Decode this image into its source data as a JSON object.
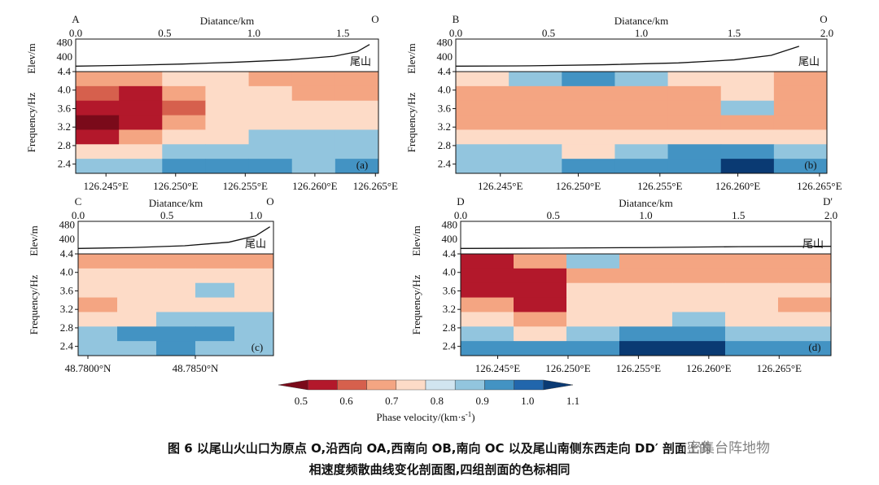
{
  "colors": {
    "palette": [
      "#7a0a1a",
      "#b3182b",
      "#d6604d",
      "#f4a582",
      "#fddbc7",
      "#d1e5f0",
      "#92c5de",
      "#4393c3",
      "#2166ac",
      "#0a3a73"
    ],
    "elev_line": "#111111"
  },
  "chart_data": [
    {
      "type": "heatmap",
      "panel_label": "(a)",
      "start_label": "A",
      "end_label": "O",
      "top_xlabel": "Diatance/km",
      "top_ticks": [
        "0.0",
        "0.5",
        "1.0",
        "1.5"
      ],
      "elev_ylabel": "Elev/m",
      "elev_ticks": [
        "480",
        "400"
      ],
      "ylabel": "Frequency/Hz",
      "yticks": [
        "4.4",
        "4.0",
        "3.6",
        "3.2",
        "2.8",
        "2.4"
      ],
      "ylim": [
        2.2,
        4.4
      ],
      "xticks": [
        "126.245°E",
        "126.250°E",
        "126.255°E",
        "126.260°E",
        "126.265°E"
      ],
      "topo_label": "尾山",
      "elevation_profile": [
        [
          0.0,
          350
        ],
        [
          0.3,
          355
        ],
        [
          0.6,
          362
        ],
        [
          0.9,
          372
        ],
        [
          1.2,
          385
        ],
        [
          1.45,
          405
        ],
        [
          1.58,
          430
        ],
        [
          1.65,
          470
        ]
      ],
      "phase_velocity_grid": [
        [
          0.65,
          0.65,
          0.75,
          0.75,
          0.65,
          0.65,
          0.65
        ],
        [
          0.6,
          0.55,
          0.65,
          0.75,
          0.75,
          0.65,
          0.65
        ],
        [
          0.55,
          0.55,
          0.6,
          0.75,
          0.75,
          0.75,
          0.75
        ],
        [
          0.5,
          0.55,
          0.65,
          0.75,
          0.75,
          0.75,
          0.75
        ],
        [
          0.55,
          0.65,
          0.75,
          0.75,
          0.85,
          0.85,
          0.85
        ],
        [
          0.75,
          0.75,
          0.85,
          0.85,
          0.85,
          0.85,
          0.85
        ],
        [
          0.85,
          0.85,
          0.95,
          0.95,
          0.95,
          0.85,
          0.95
        ]
      ]
    },
    {
      "type": "heatmap",
      "panel_label": "(b)",
      "start_label": "B",
      "end_label": "O",
      "top_xlabel": "Diatance/km",
      "top_ticks": [
        "0.0",
        "0.5",
        "1.0",
        "1.5",
        "2.0"
      ],
      "elev_ylabel": "Elev/m",
      "elev_ticks": [
        "480",
        "400"
      ],
      "ylabel": "Frequency/Hz",
      "yticks": [
        "4.4",
        "4.0",
        "3.6",
        "3.2",
        "2.8",
        "2.4"
      ],
      "ylim": [
        2.2,
        4.4
      ],
      "xticks": [
        "126.245°E",
        "126.250°E",
        "126.255°E",
        "126.260°E",
        "126.265°E"
      ],
      "topo_label": "尾山",
      "elevation_profile": [
        [
          0.0,
          350
        ],
        [
          0.4,
          352
        ],
        [
          0.8,
          358
        ],
        [
          1.2,
          368
        ],
        [
          1.5,
          385
        ],
        [
          1.7,
          410
        ],
        [
          1.85,
          460
        ]
      ],
      "phase_velocity_grid": [
        [
          0.75,
          0.85,
          0.95,
          0.85,
          0.75,
          0.75,
          0.65
        ],
        [
          0.65,
          0.65,
          0.65,
          0.65,
          0.65,
          0.75,
          0.65
        ],
        [
          0.65,
          0.65,
          0.65,
          0.65,
          0.65,
          0.85,
          0.65
        ],
        [
          0.65,
          0.65,
          0.65,
          0.65,
          0.65,
          0.65,
          0.65
        ],
        [
          0.75,
          0.75,
          0.75,
          0.75,
          0.75,
          0.75,
          0.75
        ],
        [
          0.85,
          0.85,
          0.75,
          0.85,
          0.95,
          0.95,
          0.85
        ],
        [
          0.85,
          0.85,
          0.95,
          0.95,
          0.95,
          1.05,
          0.95
        ]
      ]
    },
    {
      "type": "heatmap",
      "panel_label": "(c)",
      "start_label": "C",
      "end_label": "O",
      "top_xlabel": "Diatance/km",
      "top_ticks": [
        "0.0",
        "0.5",
        "1.0"
      ],
      "elev_ylabel": "Elev/m",
      "elev_ticks": [
        "480",
        "400"
      ],
      "ylabel": "Frequency/Hz",
      "yticks": [
        "4.4",
        "4.0",
        "3.6",
        "3.2",
        "2.8",
        "2.4"
      ],
      "ylim": [
        2.2,
        4.4
      ],
      "xticks": [
        "48.7800°N",
        "48.7850°N"
      ],
      "topo_label": "尾山",
      "elevation_profile": [
        [
          0.0,
          350
        ],
        [
          0.3,
          355
        ],
        [
          0.6,
          365
        ],
        [
          0.85,
          385
        ],
        [
          1.0,
          420
        ],
        [
          1.08,
          470
        ]
      ],
      "phase_velocity_grid": [
        [
          0.65,
          0.65,
          0.65,
          0.65,
          0.65
        ],
        [
          0.75,
          0.75,
          0.75,
          0.75,
          0.75
        ],
        [
          0.75,
          0.75,
          0.75,
          0.85,
          0.75
        ],
        [
          0.65,
          0.75,
          0.75,
          0.75,
          0.75
        ],
        [
          0.75,
          0.75,
          0.85,
          0.85,
          0.85
        ],
        [
          0.85,
          0.95,
          0.95,
          0.95,
          0.85
        ],
        [
          0.85,
          0.85,
          0.95,
          0.85,
          0.85
        ]
      ]
    },
    {
      "type": "heatmap",
      "panel_label": "(d)",
      "start_label": "D",
      "end_label": "D'",
      "top_xlabel": "Diatance/km",
      "top_ticks": [
        "0.0",
        "0.5",
        "1.0",
        "1.5",
        "2.0"
      ],
      "elev_ylabel": "Elev/m",
      "elev_ticks": [
        "480",
        "400"
      ],
      "ylabel": "Frequency/Hz",
      "yticks": [
        "4.4",
        "4.0",
        "3.6",
        "3.2",
        "2.8",
        "2.4"
      ],
      "ylim": [
        2.2,
        4.4
      ],
      "xticks": [
        "126.245°E",
        "126.250°E",
        "126.255°E",
        "126.260°E",
        "126.265°E"
      ],
      "topo_label": "尾山",
      "elevation_profile": [
        [
          0.0,
          350
        ],
        [
          0.5,
          352
        ],
        [
          1.0,
          355
        ],
        [
          1.5,
          360
        ],
        [
          2.0,
          362
        ]
      ],
      "phase_velocity_grid": [
        [
          0.55,
          0.65,
          0.85,
          0.65,
          0.65,
          0.65,
          0.65
        ],
        [
          0.55,
          0.55,
          0.65,
          0.65,
          0.65,
          0.65,
          0.65
        ],
        [
          0.55,
          0.55,
          0.75,
          0.75,
          0.75,
          0.75,
          0.75
        ],
        [
          0.65,
          0.55,
          0.75,
          0.75,
          0.75,
          0.75,
          0.65
        ],
        [
          0.75,
          0.65,
          0.75,
          0.75,
          0.85,
          0.75,
          0.75
        ],
        [
          0.85,
          0.75,
          0.85,
          0.95,
          0.95,
          0.85,
          0.85
        ],
        [
          0.95,
          0.95,
          0.95,
          1.05,
          1.05,
          0.95,
          0.95
        ]
      ]
    }
  ],
  "colorbar": {
    "ticks": [
      "0.5",
      "0.6",
      "0.7",
      "0.8",
      "0.9",
      "1.0",
      "1.1"
    ],
    "range": [
      0.45,
      1.1
    ],
    "label": "Phase velocity/(km·s",
    "label_sup": "-1",
    "label_end": ")"
  },
  "caption": {
    "line1": "图 6 以尾山火山口为原点 O,沿西向 OA,西南向 OB,南向 OC 以及尾山南侧东西走向 DD′ 剖面上的",
    "line2": "相速度频散曲线变化剖面图,四组剖面的色标相同"
  },
  "watermark": "密集台阵地物"
}
